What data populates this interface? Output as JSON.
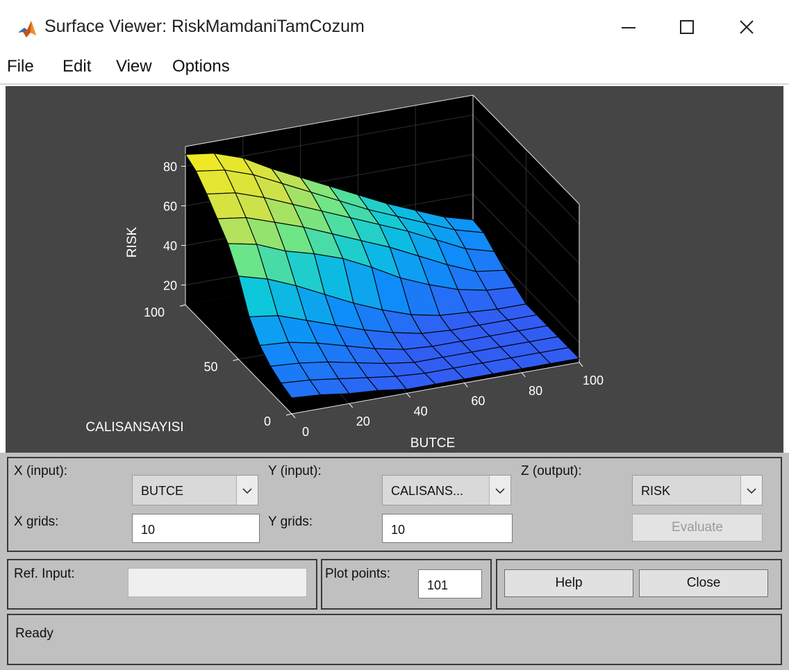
{
  "window": {
    "title": "Surface Viewer: RiskMamdaniTamCozum"
  },
  "menu": {
    "file": "File",
    "edit": "Edit",
    "view": "View",
    "options": "Options"
  },
  "plot": {
    "z_label": "RISK",
    "x_label": "BUTCE",
    "y_label": "CALISANSAYISI",
    "z_ticks": [
      "20",
      "40",
      "60",
      "80"
    ],
    "x_ticks": [
      "0",
      "20",
      "40",
      "60",
      "80",
      "100"
    ],
    "y_ticks": [
      "0",
      "50",
      "100"
    ]
  },
  "chart_data": {
    "type": "surface",
    "title": "",
    "xlabel": "BUTCE",
    "ylabel": "CALISANSAYISI",
    "zlabel": "RISK",
    "xlim": [
      0,
      100
    ],
    "ylim": [
      0,
      100
    ],
    "zlim": [
      10,
      88
    ],
    "x": [
      0,
      10,
      20,
      30,
      40,
      50,
      60,
      70,
      80,
      90,
      100
    ],
    "y": [
      0,
      10,
      20,
      30,
      40,
      50,
      60,
      70,
      80,
      90,
      100
    ],
    "z_rows_note": "z[i][j] where i indexes CALISANSAYISI (y) and j indexes BUTCE (x)",
    "z": [
      [
        18,
        17,
        15,
        14,
        12,
        12,
        12,
        12,
        12,
        12,
        12
      ],
      [
        20,
        19,
        17,
        15,
        13,
        12,
        12,
        12,
        12,
        12,
        12
      ],
      [
        23,
        22,
        20,
        17,
        14,
        12,
        12,
        12,
        12,
        12,
        12
      ],
      [
        28,
        27,
        24,
        20,
        16,
        13,
        12,
        12,
        12,
        12,
        12
      ],
      [
        37,
        35,
        30,
        25,
        20,
        16,
        13,
        12,
        12,
        12,
        12
      ],
      [
        52,
        48,
        42,
        35,
        28,
        22,
        17,
        14,
        13,
        12,
        12
      ],
      [
        63,
        60,
        54,
        50,
        45,
        38,
        30,
        24,
        19,
        16,
        15
      ],
      [
        70,
        68,
        63,
        58,
        52,
        46,
        40,
        33,
        26,
        20,
        18
      ],
      [
        77,
        75,
        70,
        64,
        58,
        52,
        46,
        40,
        33,
        26,
        22
      ],
      [
        83,
        81,
        76,
        69,
        62,
        55,
        48,
        42,
        36,
        30,
        26
      ],
      [
        86,
        84,
        79,
        71,
        64,
        57,
        50,
        43,
        37,
        31,
        27
      ]
    ],
    "colormap": "parula",
    "grid": true
  },
  "controls": {
    "x_input_label": "X (input):",
    "x_input_value": "BUTCE",
    "y_input_label": "Y (input):",
    "y_input_value": "CALISANS...",
    "z_output_label": "Z (output):",
    "z_output_value": "RISK",
    "x_grids_label": "X grids:",
    "x_grids_value": "10",
    "y_grids_label": "Y grids:",
    "y_grids_value": "10",
    "evaluate_label": "Evaluate",
    "ref_input_label": "Ref. Input:",
    "ref_input_value": "",
    "plot_points_label": "Plot points:",
    "plot_points_value": "101",
    "help_label": "Help",
    "close_label": "Close"
  },
  "status": {
    "text": "Ready"
  },
  "icons": {
    "app": "matlab-icon",
    "minimize": "minimize-icon",
    "maximize": "maximize-icon",
    "close": "close-icon",
    "dropdown": "chevron-down-icon"
  }
}
